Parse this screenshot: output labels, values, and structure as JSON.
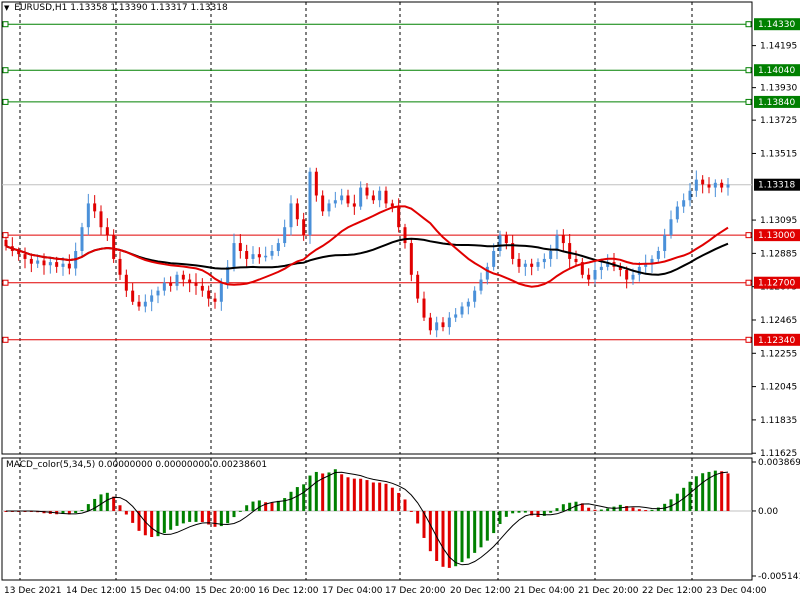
{
  "header": {
    "arrow": "▼",
    "symbol": "EURUSD,H1",
    "ohlc": "1.13358 1.13390 1.13317 1.13318"
  },
  "price_axis": {
    "ticks": [
      "1.14195",
      "1.13930",
      "1.13725",
      "1.13515",
      "1.13095",
      "1.12885",
      "1.12675",
      "1.12465",
      "1.12255",
      "1.12045",
      "1.11835",
      "1.11625"
    ]
  },
  "levels": [
    {
      "label": "1.14330",
      "value": 1.1433,
      "color": "#008000"
    },
    {
      "label": "1.14040",
      "value": 1.1404,
      "color": "#008000"
    },
    {
      "label": "1.13840",
      "value": 1.1384,
      "color": "#008000"
    },
    {
      "label": "1.13000",
      "value": 1.13,
      "color": "#e00000"
    },
    {
      "label": "1.12700",
      "value": 1.127,
      "color": "#e00000"
    },
    {
      "label": "1.12340",
      "value": 1.1234,
      "color": "#e00000"
    }
  ],
  "current_price": {
    "label": "1.13318",
    "value": 1.13318
  },
  "macd": {
    "title": "MACD_color(5,34,5) 0.00000000 0.00000000 0.00238601",
    "ticks": [
      "0.0038699",
      "0.00",
      "-0.005141"
    ]
  },
  "time_axis": {
    "labels": [
      "13 Dec 2021",
      "14 Dec 12:00",
      "15 Dec 04:00",
      "15 Dec 20:00",
      "16 Dec 12:00",
      "17 Dec 04:00",
      "17 Dec 20:00",
      "20 Dec 12:00",
      "21 Dec 04:00",
      "21 Dec 20:00",
      "22 Dec 12:00",
      "23 Dec 04:00"
    ]
  },
  "colors": {
    "bull": "#4a90d9",
    "bear": "#e00000",
    "ma_fast": "#e00000",
    "ma_slow": "#000000",
    "macd_pos_up": "#008000",
    "macd_neg": "#e00000",
    "grid": "#000000"
  },
  "chart_data": {
    "type": "candlestick",
    "timeframe": "H1",
    "symbol": "EURUSD",
    "ylim": [
      1.1162,
      1.1447
    ],
    "close_series": [
      1.1293,
      1.129,
      1.1288,
      1.1285,
      1.1282,
      1.1284,
      1.1281,
      1.1283,
      1.128,
      1.1282,
      1.1279,
      1.129,
      1.1305,
      1.132,
      1.1315,
      1.1305,
      1.13,
      1.1285,
      1.1275,
      1.1265,
      1.1258,
      1.1255,
      1.1258,
      1.1262,
      1.1265,
      1.127,
      1.1268,
      1.1275,
      1.1272,
      1.127,
      1.1268,
      1.1265,
      1.126,
      1.1258,
      1.127,
      1.128,
      1.1295,
      1.129,
      1.1285,
      1.1288,
      1.1286,
      1.1287,
      1.129,
      1.1295,
      1.1305,
      1.132,
      1.131,
      1.13,
      1.134,
      1.1325,
      1.1315,
      1.132,
      1.1322,
      1.1325,
      1.132,
      1.1318,
      1.133,
      1.1325,
      1.1322,
      1.1328,
      1.132,
      1.1318,
      1.1305,
      1.1295,
      1.1275,
      1.126,
      1.1248,
      1.124,
      1.1245,
      1.1242,
      1.1248,
      1.125,
      1.1255,
      1.1258,
      1.1265,
      1.1272,
      1.128,
      1.129,
      1.13,
      1.1295,
      1.1285,
      1.128,
      1.1282,
      1.128,
      1.1283,
      1.1285,
      1.129,
      1.13,
      1.1295,
      1.1285,
      1.1283,
      1.1275,
      1.1272,
      1.1278,
      1.128,
      1.1283,
      1.128,
      1.1278,
      1.1272,
      1.1275,
      1.128,
      1.1282,
      1.1285,
      1.129,
      1.13,
      1.131,
      1.1318,
      1.1322,
      1.1328,
      1.1335,
      1.1332,
      1.133,
      1.1333,
      1.133,
      1.1332
    ]
  }
}
